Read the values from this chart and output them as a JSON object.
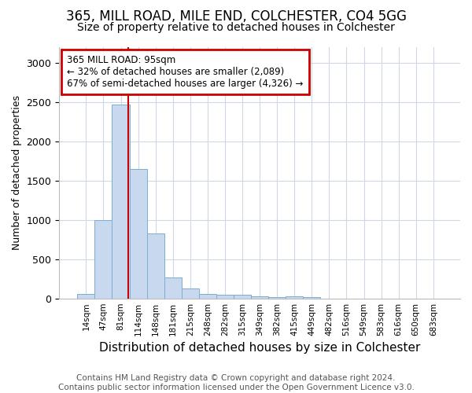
{
  "title1": "365, MILL ROAD, MILE END, COLCHESTER, CO4 5GG",
  "title2": "Size of property relative to detached houses in Colchester",
  "xlabel": "Distribution of detached houses by size in Colchester",
  "ylabel": "Number of detached properties",
  "footnote": "Contains HM Land Registry data © Crown copyright and database right 2024.\nContains public sector information licensed under the Open Government Licence v3.0.",
  "bar_labels": [
    "14sqm",
    "47sqm",
    "81sqm",
    "114sqm",
    "148sqm",
    "181sqm",
    "215sqm",
    "248sqm",
    "282sqm",
    "315sqm",
    "349sqm",
    "382sqm",
    "415sqm",
    "449sqm",
    "482sqm",
    "516sqm",
    "549sqm",
    "583sqm",
    "616sqm",
    "650sqm",
    "683sqm"
  ],
  "bar_values": [
    60,
    1000,
    2470,
    1650,
    830,
    270,
    130,
    55,
    50,
    45,
    30,
    20,
    25,
    15,
    0,
    0,
    0,
    0,
    0,
    0,
    0
  ],
  "bar_color": "#c8d8ee",
  "bar_edge_color": "#7aaed0",
  "red_line_x": 2.42,
  "annotation_text": "365 MILL ROAD: 95sqm\n← 32% of detached houses are smaller (2,089)\n67% of semi-detached houses are larger (4,326) →",
  "annotation_box_color": "#ffffff",
  "annotation_box_edge_color": "#cc0000",
  "red_line_color": "#cc0000",
  "ylim": [
    0,
    3200
  ],
  "yticks": [
    0,
    500,
    1000,
    1500,
    2000,
    2500,
    3000
  ],
  "background_color": "#ffffff",
  "plot_bg_color": "#ffffff",
  "title1_fontsize": 12,
  "title2_fontsize": 10,
  "xlabel_fontsize": 11,
  "ylabel_fontsize": 9,
  "footnote_fontsize": 7.5,
  "grid_color": "#d0d8e8"
}
